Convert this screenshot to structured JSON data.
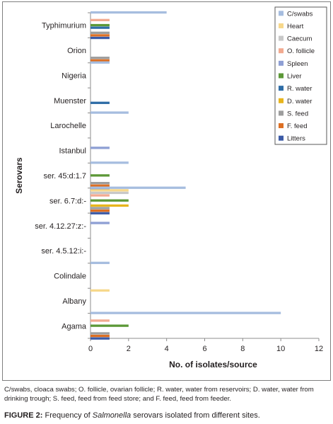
{
  "chart_data": {
    "type": "bar",
    "orientation": "horizontal",
    "ylabel": "Serovars",
    "xlabel": "No. of isolates/source",
    "xlim": [
      0,
      12
    ],
    "xticks": [
      0,
      2,
      4,
      6,
      8,
      10,
      12
    ],
    "grid": false,
    "legend_position": "top-right",
    "categories": [
      "Typhimurium",
      "Orion",
      "Nigeria",
      "Muenster",
      "Larochelle",
      "Istanbul",
      "ser. 45:d:1.7",
      "ser. 6.7:d:-",
      "ser. 4.12.27:z:-",
      "ser. 4.5.12:i:-",
      "Colindale",
      "Albany",
      "Agama"
    ],
    "series": [
      {
        "name": "C/swabs",
        "color": "#a6bddf",
        "values": [
          4,
          0,
          1,
          0,
          2,
          0,
          2,
          5,
          0,
          0,
          1,
          0,
          10
        ]
      },
      {
        "name": "Heart",
        "color": "#f7d88b",
        "values": [
          0,
          0,
          0,
          0,
          0,
          0,
          0,
          2,
          0,
          0,
          0,
          1,
          0
        ]
      },
      {
        "name": "Caecum",
        "color": "#c8c8c8",
        "values": [
          0,
          0,
          0,
          0,
          0,
          0,
          0,
          2,
          0,
          0,
          0,
          0,
          0
        ]
      },
      {
        "name": "O. follicle",
        "color": "#f2aa90",
        "values": [
          1,
          0,
          0,
          0,
          0,
          0,
          0,
          1,
          0,
          0,
          0,
          0,
          1
        ]
      },
      {
        "name": "Spleen",
        "color": "#8e9fd4",
        "values": [
          0,
          0,
          0,
          0,
          0,
          1,
          0,
          0,
          1,
          0,
          0,
          0,
          0
        ]
      },
      {
        "name": "Liver",
        "color": "#5c9837",
        "values": [
          1,
          0,
          0,
          0,
          0,
          0,
          1,
          2,
          0,
          0,
          0,
          0,
          2
        ]
      },
      {
        "name": "R. water",
        "color": "#2f6da6",
        "values": [
          1,
          0,
          0,
          1,
          0,
          0,
          0,
          0,
          0,
          0,
          0,
          0,
          0
        ]
      },
      {
        "name": "D. water",
        "color": "#e8b51c",
        "values": [
          0,
          0,
          0,
          0,
          0,
          0,
          0,
          2,
          0,
          0,
          0,
          0,
          0
        ]
      },
      {
        "name": "S. feed",
        "color": "#9d9d9d",
        "values": [
          1,
          1,
          0,
          0,
          0,
          0,
          1,
          1,
          0,
          0,
          0,
          0,
          1
        ]
      },
      {
        "name": "F. feed",
        "color": "#dd6f23",
        "values": [
          1,
          1,
          0,
          0,
          0,
          0,
          1,
          1,
          0,
          0,
          0,
          0,
          1
        ]
      },
      {
        "name": "Litters",
        "color": "#3b5aa6",
        "values": [
          1,
          0,
          0,
          0,
          0,
          0,
          1,
          1,
          0,
          0,
          0,
          0,
          1
        ]
      }
    ]
  },
  "footnote": "C/swabs, cloaca swabs; O. follicle, ovarian follicle; R. water, water from reservoirs; D. water, water from drinking trough; S. feed, feed from feed store; and F. feed, feed from feeder.",
  "caption": {
    "label": "FIGURE 2:",
    "text_before": "Frequency of",
    "italic": "Salmonella",
    "text_after": "serovars isolated from different sites."
  }
}
